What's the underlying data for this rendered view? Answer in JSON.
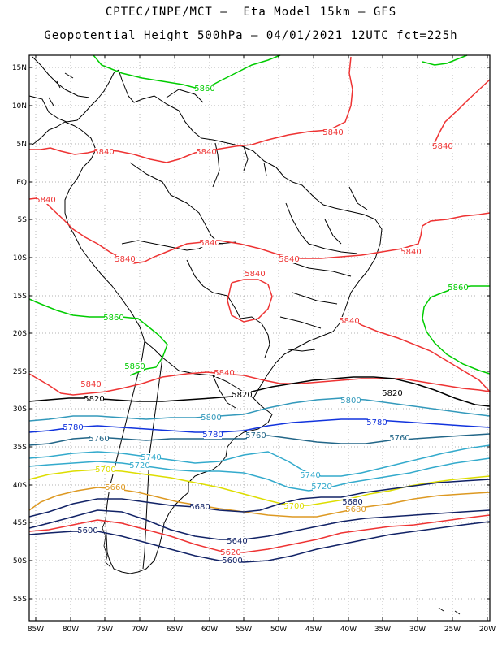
{
  "title_line1": "CPTEC/INPE/MCT –  Eta Model 15km – GFS",
  "title_line2": "Geopotential Height 500hPa – 04/01/2021 12UTC fct=225h",
  "lat_labels": [
    "15N",
    "10N",
    "5N",
    "EQ",
    "5S",
    "10S",
    "15S",
    "20S",
    "25S",
    "30S",
    "35S",
    "40S",
    "45S",
    "50S",
    "55S"
  ],
  "lon_labels": [
    "85W",
    "80W",
    "75W",
    "70W",
    "65W",
    "60W",
    "55W",
    "50W",
    "45W",
    "40W",
    "35W",
    "30W",
    "25W",
    "20W"
  ],
  "contour_labels": [
    {
      "text": "5860",
      "color": "#00cc00"
    },
    {
      "text": "5860",
      "color": "#00cc00"
    },
    {
      "text": "5860",
      "color": "#00cc00"
    },
    {
      "text": "5860",
      "color": "#00cc00"
    },
    {
      "text": "5840",
      "color": "#ee3333"
    },
    {
      "text": "5840",
      "color": "#ee3333"
    },
    {
      "text": "5840",
      "color": "#ee3333"
    },
    {
      "text": "5840",
      "color": "#ee3333"
    },
    {
      "text": "5840",
      "color": "#ee3333"
    },
    {
      "text": "5840",
      "color": "#ee3333"
    },
    {
      "text": "5840",
      "color": "#ee3333"
    },
    {
      "text": "5840",
      "color": "#ee3333"
    },
    {
      "text": "5840",
      "color": "#ee3333"
    },
    {
      "text": "5840",
      "color": "#ee3333"
    },
    {
      "text": "5840",
      "color": "#ee3333"
    },
    {
      "text": "5840",
      "color": "#ee3333"
    },
    {
      "text": "5840",
      "color": "#ee3333"
    },
    {
      "text": "5820",
      "color": "#000000"
    },
    {
      "text": "5820",
      "color": "#000000"
    },
    {
      "text": "5820",
      "color": "#000000"
    },
    {
      "text": "5800",
      "color": "#3399bb"
    },
    {
      "text": "5800",
      "color": "#3399bb"
    },
    {
      "text": "5780",
      "color": "#1133dd"
    },
    {
      "text": "5780",
      "color": "#1133dd"
    },
    {
      "text": "5780",
      "color": "#1133dd"
    },
    {
      "text": "5760",
      "color": "#226688"
    },
    {
      "text": "5760",
      "color": "#226688"
    },
    {
      "text": "5760",
      "color": "#226688"
    },
    {
      "text": "5740",
      "color": "#33aacc"
    },
    {
      "text": "5740",
      "color": "#33aacc"
    },
    {
      "text": "5720",
      "color": "#33aacc"
    },
    {
      "text": "5720",
      "color": "#33aacc"
    },
    {
      "text": "5700",
      "color": "#dddd00"
    },
    {
      "text": "5700",
      "color": "#dddd00"
    },
    {
      "text": "5680",
      "color": "#dd9922"
    },
    {
      "text": "5680",
      "color": "#dd9922"
    },
    {
      "text": "5680",
      "color": "#112266"
    },
    {
      "text": "5680",
      "color": "#112266"
    },
    {
      "text": "5660",
      "color": "#dd9922"
    },
    {
      "text": "5640",
      "color": "#112266"
    },
    {
      "text": "5620",
      "color": "#ee3333"
    },
    {
      "text": "5600",
      "color": "#112266"
    },
    {
      "text": "5600",
      "color": "#112266"
    }
  ]
}
